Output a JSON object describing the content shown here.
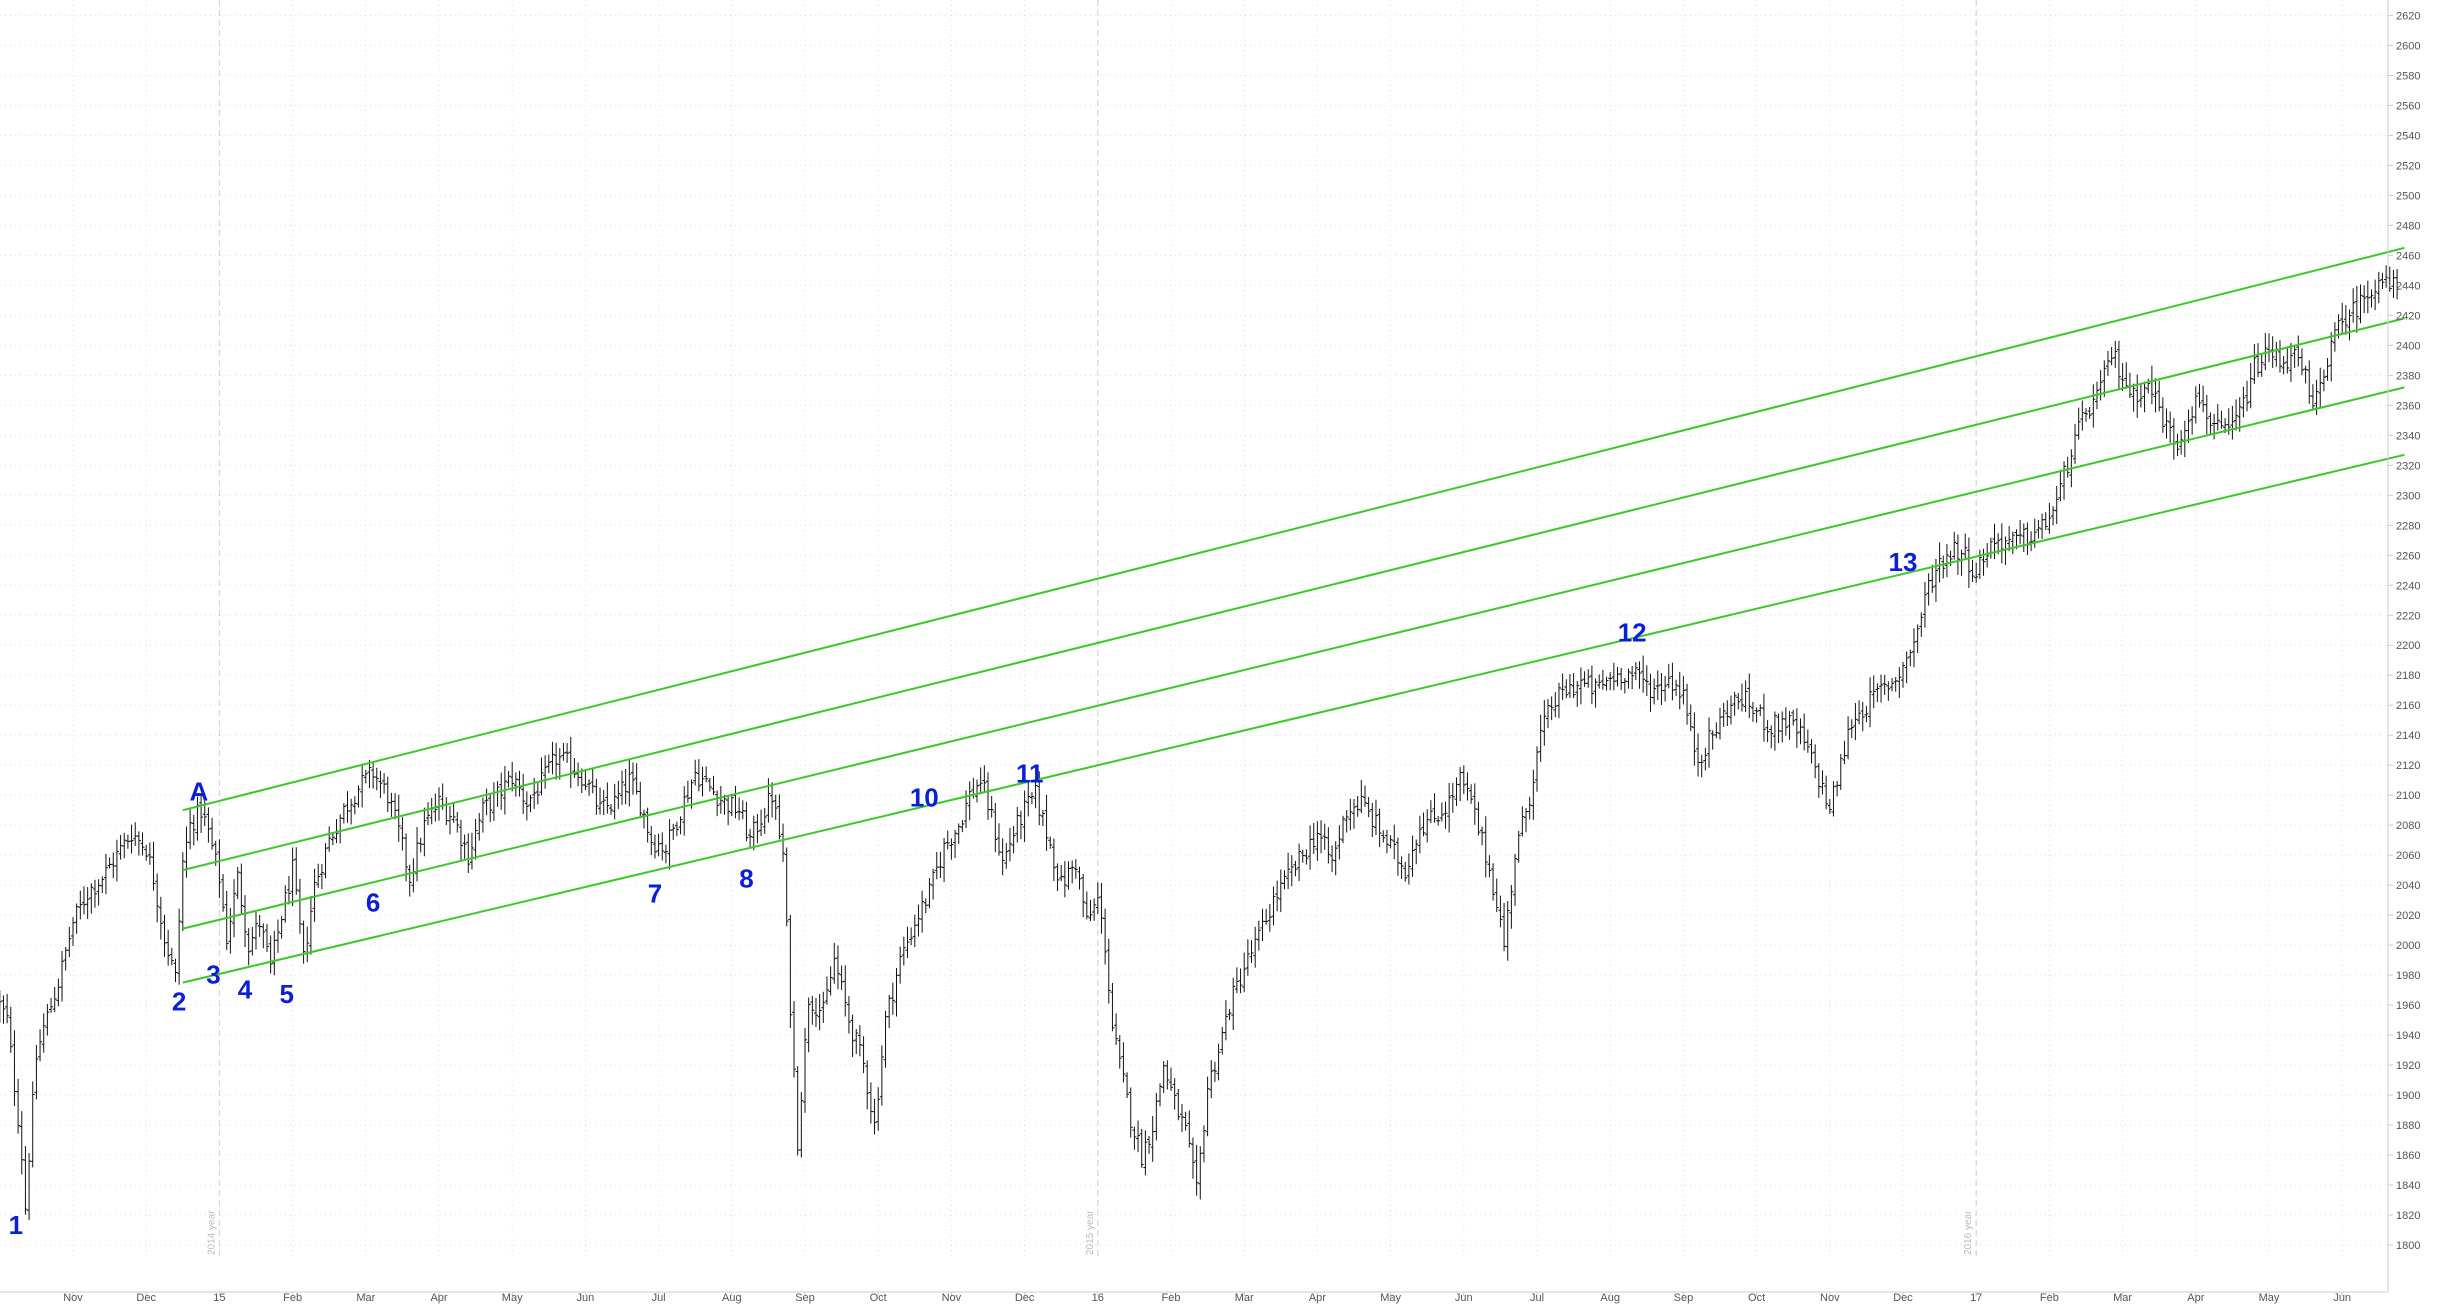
{
  "colors": {
    "background": "#ffffff",
    "price": "#111111",
    "channel": "#3cc829",
    "labels": "#0a1fd6",
    "grid": "#e3e3e3",
    "axis": "#cccccc"
  },
  "chart_data": {
    "type": "ohlc",
    "y_axis": {
      "ylim": [
        1790,
        2625
      ],
      "ticks": [
        1800,
        1820,
        1840,
        1860,
        1880,
        1900,
        1920,
        1940,
        1960,
        1980,
        2000,
        2020,
        2040,
        2060,
        2080,
        2100,
        2120,
        2140,
        2160,
        2180,
        2200,
        2220,
        2240,
        2260,
        2280,
        2300,
        2320,
        2340,
        2360,
        2380,
        2400,
        2420,
        2440,
        2460,
        2480,
        2500,
        2520,
        2540,
        2560,
        2580,
        2600,
        2620
      ],
      "position": "right"
    },
    "x_axis": {
      "range_months": [
        -0.2,
        32.85
      ],
      "ticks": [
        {
          "t": 1,
          "label": "Nov"
        },
        {
          "t": 2,
          "label": "Dec"
        },
        {
          "t": 3,
          "label": "15"
        },
        {
          "t": 4,
          "label": "Feb"
        },
        {
          "t": 5,
          "label": "Mar"
        },
        {
          "t": 6,
          "label": "Apr"
        },
        {
          "t": 7,
          "label": "May"
        },
        {
          "t": 8,
          "label": "Jun"
        },
        {
          "t": 9,
          "label": "Jul"
        },
        {
          "t": 10,
          "label": "Aug"
        },
        {
          "t": 11,
          "label": "Sep"
        },
        {
          "t": 12,
          "label": "Oct"
        },
        {
          "t": 13,
          "label": "Nov"
        },
        {
          "t": 14,
          "label": "Dec"
        },
        {
          "t": 15,
          "label": "16"
        },
        {
          "t": 16,
          "label": "Feb"
        },
        {
          "t": 17,
          "label": "Mar"
        },
        {
          "t": 18,
          "label": "Apr"
        },
        {
          "t": 19,
          "label": "May"
        },
        {
          "t": 20,
          "label": "Jun"
        },
        {
          "t": 21,
          "label": "Jul"
        },
        {
          "t": 22,
          "label": "Aug"
        },
        {
          "t": 23,
          "label": "Sep"
        },
        {
          "t": 24,
          "label": "Oct"
        },
        {
          "t": 25,
          "label": "Nov"
        },
        {
          "t": 26,
          "label": "Dec"
        },
        {
          "t": 27,
          "label": "17"
        },
        {
          "t": 28,
          "label": "Feb"
        },
        {
          "t": 29,
          "label": "Mar"
        },
        {
          "t": 30,
          "label": "Apr"
        },
        {
          "t": 31,
          "label": "May"
        },
        {
          "t": 32,
          "label": "Jun"
        }
      ],
      "year_separators": [
        {
          "t": 3,
          "label": "2014 year"
        },
        {
          "t": 15,
          "label": "2015 year"
        },
        {
          "t": 27,
          "label": "2016 year"
        }
      ]
    },
    "series": [
      {
        "name": "",
        "type": "ohlc_path",
        "points": [
          [
            0.0,
            1960
          ],
          [
            0.1,
            1950
          ],
          [
            0.18,
            1915
          ],
          [
            0.25,
            1885
          ],
          [
            0.3,
            1860
          ],
          [
            0.35,
            1825
          ],
          [
            0.42,
            1875
          ],
          [
            0.5,
            1925
          ],
          [
            0.6,
            1945
          ],
          [
            0.8,
            1975
          ],
          [
            1.0,
            2015
          ],
          [
            1.2,
            2035
          ],
          [
            1.4,
            2045
          ],
          [
            1.6,
            2060
          ],
          [
            1.8,
            2075
          ],
          [
            2.0,
            2065
          ],
          [
            2.1,
            2045
          ],
          [
            2.25,
            2005
          ],
          [
            2.4,
            1978
          ],
          [
            2.5,
            2055
          ],
          [
            2.6,
            2080
          ],
          [
            2.75,
            2090
          ],
          [
            2.85,
            2075
          ],
          [
            3.0,
            2045
          ],
          [
            3.1,
            2005
          ],
          [
            3.25,
            2045
          ],
          [
            3.4,
            2000
          ],
          [
            3.55,
            2015
          ],
          [
            3.7,
            1985
          ],
          [
            3.85,
            2020
          ],
          [
            4.0,
            2050
          ],
          [
            4.15,
            1990
          ],
          [
            4.3,
            2040
          ],
          [
            4.5,
            2070
          ],
          [
            4.7,
            2090
          ],
          [
            4.9,
            2105
          ],
          [
            5.1,
            2115
          ],
          [
            5.3,
            2100
          ],
          [
            5.45,
            2075
          ],
          [
            5.6,
            2045
          ],
          [
            5.8,
            2080
          ],
          [
            6.0,
            2095
          ],
          [
            6.2,
            2085
          ],
          [
            6.4,
            2060
          ],
          [
            6.6,
            2090
          ],
          [
            6.8,
            2100
          ],
          [
            7.0,
            2112
          ],
          [
            7.2,
            2095
          ],
          [
            7.4,
            2108
          ],
          [
            7.6,
            2125
          ],
          [
            7.8,
            2120
          ],
          [
            8.0,
            2110
          ],
          [
            8.2,
            2090
          ],
          [
            8.4,
            2095
          ],
          [
            8.6,
            2110
          ],
          [
            8.75,
            2095
          ],
          [
            8.9,
            2070
          ],
          [
            9.1,
            2065
          ],
          [
            9.3,
            2090
          ],
          [
            9.5,
            2115
          ],
          [
            9.7,
            2105
          ],
          [
            9.9,
            2095
          ],
          [
            10.1,
            2090
          ],
          [
            10.25,
            2070
          ],
          [
            10.4,
            2085
          ],
          [
            10.55,
            2100
          ],
          [
            10.7,
            2060
          ],
          [
            10.8,
            1960
          ],
          [
            10.9,
            1870
          ],
          [
            11.05,
            1965
          ],
          [
            11.25,
            1955
          ],
          [
            11.4,
            1990
          ],
          [
            11.6,
            1950
          ],
          [
            11.8,
            1920
          ],
          [
            11.95,
            1880
          ],
          [
            12.1,
            1950
          ],
          [
            12.3,
            1990
          ],
          [
            12.5,
            2015
          ],
          [
            12.7,
            2035
          ],
          [
            12.9,
            2065
          ],
          [
            13.1,
            2080
          ],
          [
            13.25,
            2100
          ],
          [
            13.4,
            2110
          ],
          [
            13.55,
            2085
          ],
          [
            13.7,
            2055
          ],
          [
            13.85,
            2075
          ],
          [
            14.0,
            2090
          ],
          [
            14.15,
            2100
          ],
          [
            14.3,
            2075
          ],
          [
            14.5,
            2040
          ],
          [
            14.7,
            2055
          ],
          [
            14.85,
            2015
          ],
          [
            15.0,
            2030
          ],
          [
            15.1,
            2000
          ],
          [
            15.2,
            1945
          ],
          [
            15.3,
            1920
          ],
          [
            15.45,
            1885
          ],
          [
            15.6,
            1860
          ],
          [
            15.75,
            1880
          ],
          [
            15.9,
            1920
          ],
          [
            16.05,
            1895
          ],
          [
            16.2,
            1875
          ],
          [
            16.35,
            1835
          ],
          [
            16.5,
            1905
          ],
          [
            16.65,
            1930
          ],
          [
            16.8,
            1960
          ],
          [
            17.0,
            1985
          ],
          [
            17.2,
            2005
          ],
          [
            17.4,
            2030
          ],
          [
            17.6,
            2045
          ],
          [
            17.8,
            2060
          ],
          [
            18.0,
            2075
          ],
          [
            18.2,
            2055
          ],
          [
            18.4,
            2090
          ],
          [
            18.6,
            2095
          ],
          [
            18.8,
            2080
          ],
          [
            19.0,
            2065
          ],
          [
            19.2,
            2050
          ],
          [
            19.4,
            2080
          ],
          [
            19.6,
            2085
          ],
          [
            19.8,
            2095
          ],
          [
            19.95,
            2110
          ],
          [
            20.1,
            2095
          ],
          [
            20.3,
            2060
          ],
          [
            20.45,
            2030
          ],
          [
            20.55,
            2000
          ],
          [
            20.7,
            2060
          ],
          [
            20.9,
            2100
          ],
          [
            21.05,
            2140
          ],
          [
            21.2,
            2160
          ],
          [
            21.4,
            2170
          ],
          [
            21.6,
            2175
          ],
          [
            21.8,
            2170
          ],
          [
            22.0,
            2178
          ],
          [
            22.2,
            2182
          ],
          [
            22.4,
            2178
          ],
          [
            22.6,
            2170
          ],
          [
            22.8,
            2178
          ],
          [
            23.0,
            2168
          ],
          [
            23.1,
            2140
          ],
          [
            23.2,
            2125
          ],
          [
            23.4,
            2140
          ],
          [
            23.6,
            2158
          ],
          [
            23.8,
            2165
          ],
          [
            24.0,
            2155
          ],
          [
            24.2,
            2145
          ],
          [
            24.4,
            2150
          ],
          [
            24.6,
            2140
          ],
          [
            24.8,
            2118
          ],
          [
            25.0,
            2090
          ],
          [
            25.15,
            2120
          ],
          [
            25.3,
            2150
          ],
          [
            25.5,
            2160
          ],
          [
            25.7,
            2170
          ],
          [
            25.9,
            2178
          ],
          [
            26.05,
            2190
          ],
          [
            26.2,
            2210
          ],
          [
            26.35,
            2240
          ],
          [
            26.5,
            2255
          ],
          [
            26.7,
            2265
          ],
          [
            26.85,
            2260
          ],
          [
            27.0,
            2248
          ],
          [
            27.15,
            2265
          ],
          [
            27.3,
            2270
          ],
          [
            27.5,
            2268
          ],
          [
            27.7,
            2272
          ],
          [
            27.9,
            2278
          ],
          [
            28.1,
            2295
          ],
          [
            28.3,
            2330
          ],
          [
            28.5,
            2355
          ],
          [
            28.7,
            2370
          ],
          [
            28.85,
            2395
          ],
          [
            29.0,
            2380
          ],
          [
            29.15,
            2365
          ],
          [
            29.3,
            2375
          ],
          [
            29.45,
            2365
          ],
          [
            29.6,
            2345
          ],
          [
            29.75,
            2335
          ],
          [
            29.9,
            2355
          ],
          [
            30.05,
            2365
          ],
          [
            30.2,
            2350
          ],
          [
            30.35,
            2340
          ],
          [
            30.5,
            2345
          ],
          [
            30.65,
            2360
          ],
          [
            30.8,
            2385
          ],
          [
            31.0,
            2395
          ],
          [
            31.2,
            2390
          ],
          [
            31.35,
            2392
          ],
          [
            31.5,
            2378
          ],
          [
            31.6,
            2355
          ],
          [
            31.75,
            2385
          ],
          [
            31.9,
            2405
          ],
          [
            32.05,
            2420
          ],
          [
            32.2,
            2425
          ],
          [
            32.35,
            2435
          ],
          [
            32.5,
            2445
          ],
          [
            32.6,
            2440
          ],
          [
            32.75,
            2438
          ]
        ]
      },
      {
        "name": "",
        "type": "channel_line",
        "from": [
          2.5,
          2090
        ],
        "to": [
          32.85,
          2465
        ]
      },
      {
        "name": "",
        "type": "channel_line",
        "from": [
          2.5,
          2050
        ],
        "to": [
          32.85,
          2418
        ]
      },
      {
        "name": "",
        "type": "channel_line",
        "from": [
          2.5,
          2011
        ],
        "to": [
          32.85,
          2372
        ]
      },
      {
        "name": "",
        "type": "channel_line",
        "from": [
          2.5,
          1975
        ],
        "to": [
          32.85,
          2327
        ]
      }
    ],
    "annotations": [
      {
        "text": "1",
        "t": 0.22,
        "y": 1812
      },
      {
        "text": "2",
        "t": 2.45,
        "y": 1961
      },
      {
        "text": "3",
        "t": 2.92,
        "y": 1979
      },
      {
        "text": "4",
        "t": 3.35,
        "y": 1969
      },
      {
        "text": "5",
        "t": 3.92,
        "y": 1966
      },
      {
        "text": "A",
        "t": 2.72,
        "y": 2101
      },
      {
        "text": "6",
        "t": 5.1,
        "y": 2027
      },
      {
        "text": "7",
        "t": 8.95,
        "y": 2033
      },
      {
        "text": "8",
        "t": 10.2,
        "y": 2043
      },
      {
        "text": "10",
        "t": 12.63,
        "y": 2097
      },
      {
        "text": "11",
        "t": 14.07,
        "y": 2113
      },
      {
        "text": "12",
        "t": 22.3,
        "y": 2207
      },
      {
        "text": "13",
        "t": 26.0,
        "y": 2254
      }
    ]
  }
}
